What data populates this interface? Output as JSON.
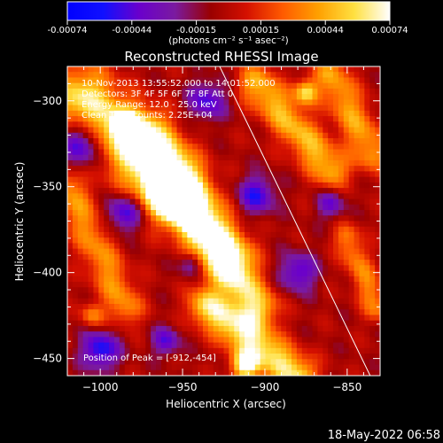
{
  "colorbar": {
    "tick_labels": [
      "-0.00074",
      "-0.00044",
      "-0.00015",
      "0.00015",
      "0.00044",
      "0.00074"
    ],
    "unit_label": "(photons cm⁻² s⁻¹ asec⁻²)",
    "colors": [
      "#0000ff",
      "#1010ff",
      "#6a00cc",
      "#7a1aa0",
      "#9a0000",
      "#d41000",
      "#ff5a00",
      "#ffa000",
      "#ffe040",
      "#ffffff"
    ]
  },
  "plot": {
    "title": "Reconstructed RHESSI Image",
    "info": {
      "time_range": "10-Nov-2013 13:55:52.000 to 14:01:52.000",
      "detectors": "Detectors: 3F 4F 5F 6F 7F 8F  Att 0",
      "energy": "Energy Range: 12.0 - 25.0 keV",
      "clean": "Clean     Total counts: 2.25E+04"
    },
    "peak_text": "Position of Peak = [-912,-454]"
  },
  "footer": {
    "timestamp": "18-May-2022 06:58"
  },
  "chart_data": {
    "type": "heatmap",
    "title": "Reconstructed RHESSI Image",
    "xlabel": "Heliocentric X (arcsec)",
    "ylabel": "Heliocentric Y (arcsec)",
    "xlim": [
      -1020,
      -830
    ],
    "ylim": [
      -460,
      -280
    ],
    "x_ticks": [
      -1000,
      -950,
      -900,
      -850
    ],
    "y_ticks": [
      -300,
      -350,
      -400,
      -450
    ],
    "x_tick_labels": [
      "−1000",
      "−950",
      "−900",
      "−850"
    ],
    "y_tick_labels": [
      "−300",
      "−350",
      "−400",
      "−450"
    ],
    "colorbar_range": [
      -0.00074,
      0.00074
    ],
    "peak_position": [
      -912,
      -454
    ],
    "limb_line": [
      [
        -930,
        -275
      ],
      [
        -835,
        -462
      ]
    ],
    "grid_cols": 60,
    "grid_rows": 56,
    "bright_ridges": [
      {
        "from": [
          -1010,
          -300
        ],
        "to": [
          -960,
          -350
        ],
        "width": 14,
        "amp": 0.95
      },
      {
        "from": [
          -970,
          -320
        ],
        "to": [
          -920,
          -390
        ],
        "width": 10,
        "amp": 0.7
      },
      {
        "from": [
          -960,
          -350
        ],
        "to": [
          -905,
          -420
        ],
        "width": 9,
        "amp": 0.85
      },
      {
        "from": [
          -1020,
          -350
        ],
        "to": [
          -985,
          -420
        ],
        "width": 8,
        "amp": 0.55
      },
      {
        "from": [
          -935,
          -420
        ],
        "to": [
          -880,
          -460
        ],
        "width": 8,
        "amp": 0.9
      },
      {
        "from": [
          -905,
          -290
        ],
        "to": [
          -860,
          -340
        ],
        "width": 8,
        "amp": 0.7
      },
      {
        "from": [
          -860,
          -285
        ],
        "to": [
          -835,
          -330
        ],
        "width": 8,
        "amp": 0.6
      },
      {
        "from": [
          -850,
          -380
        ],
        "to": [
          -832,
          -420
        ],
        "width": 6,
        "amp": 0.5
      }
    ],
    "bright_spots": [
      {
        "at": [
          -912,
          -454
        ],
        "radius": 6,
        "amp": 1.0
      },
      {
        "at": [
          -985,
          -315
        ],
        "radius": 6,
        "amp": 0.9
      },
      {
        "at": [
          -955,
          -360
        ],
        "radius": 5,
        "amp": 0.9
      },
      {
        "at": [
          -875,
          -295
        ],
        "radius": 5,
        "amp": 0.8
      },
      {
        "at": [
          -1005,
          -425
        ],
        "radius": 5,
        "amp": 0.5
      }
    ],
    "dark_spots": [
      {
        "at": [
          -1010,
          -325
        ],
        "radius": 10,
        "amp": -0.85
      },
      {
        "at": [
          -985,
          -365
        ],
        "radius": 8,
        "amp": -0.7
      },
      {
        "at": [
          -935,
          -300
        ],
        "radius": 8,
        "amp": -0.6
      },
      {
        "at": [
          -905,
          -355
        ],
        "radius": 8,
        "amp": -0.65
      },
      {
        "at": [
          -880,
          -400
        ],
        "radius": 8,
        "amp": -0.6
      },
      {
        "at": [
          -860,
          -360
        ],
        "radius": 6,
        "amp": -0.5
      },
      {
        "at": [
          -1000,
          -445
        ],
        "radius": 8,
        "amp": -0.75
      },
      {
        "at": [
          -960,
          -440
        ],
        "radius": 6,
        "amp": -0.55
      },
      {
        "at": [
          -945,
          -395
        ],
        "radius": 5,
        "amp": -0.5
      }
    ]
  }
}
